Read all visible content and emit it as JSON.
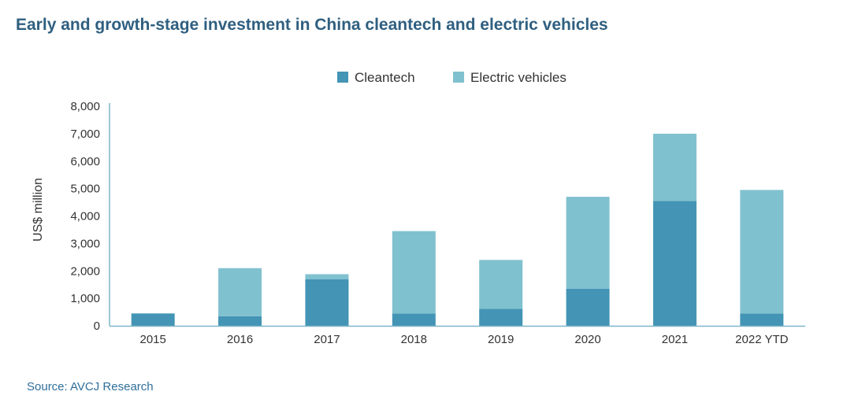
{
  "chart_data": {
    "type": "bar",
    "stacked": true,
    "title": "Early and growth-stage investment in China cleantech and electric vehicles",
    "xlabel": "",
    "ylabel": "US$ million",
    "categories": [
      "2015",
      "2016",
      "2017",
      "2018",
      "2019",
      "2020",
      "2021",
      "2022 YTD"
    ],
    "series": [
      {
        "name": "Cleantech",
        "color": "#4394b5",
        "values": [
          450,
          350,
          1700,
          450,
          620,
          1350,
          4550,
          450
        ]
      },
      {
        "name": "Electric vehicles",
        "color": "#80c1cf",
        "values": [
          0,
          1750,
          180,
          3000,
          1780,
          3350,
          2450,
          4500
        ]
      }
    ],
    "ylim": [
      0,
      8000
    ],
    "yticks": [
      0,
      1000,
      2000,
      3000,
      4000,
      5000,
      6000,
      7000,
      8000
    ],
    "ytick_labels": [
      "0",
      "1,000",
      "2,000",
      "3,000",
      "4,000",
      "5,000",
      "6,000",
      "7,000",
      "8,000"
    ],
    "legend_position": "top-center",
    "grid": false,
    "source": "Source: AVCJ Research"
  }
}
